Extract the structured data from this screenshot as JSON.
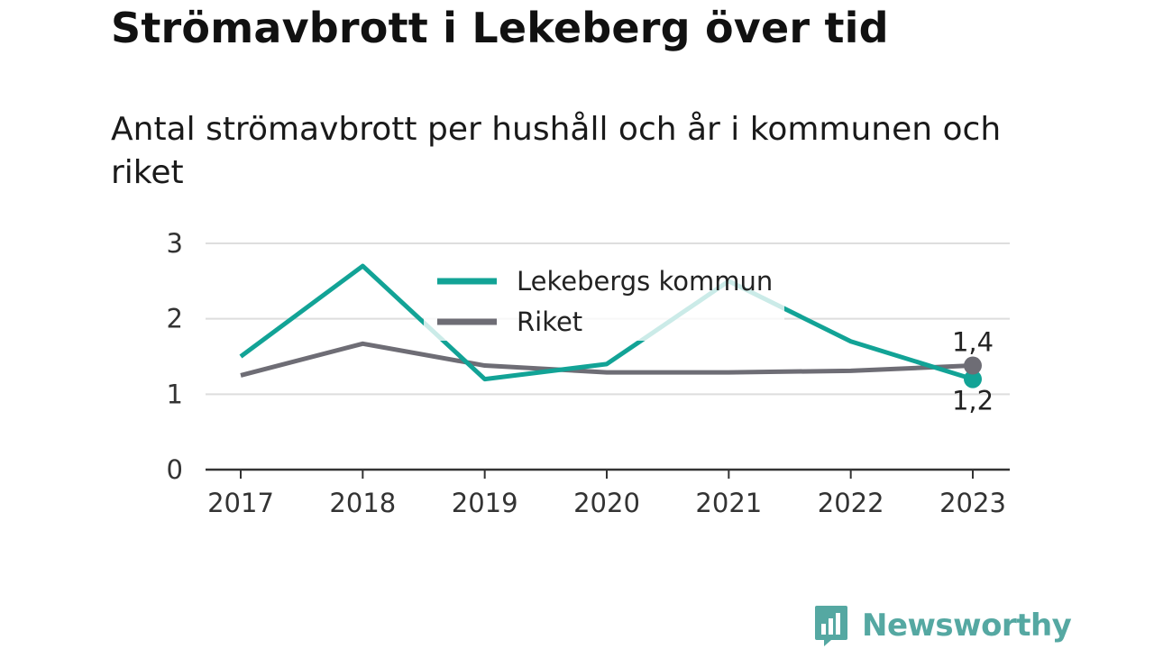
{
  "title": "Strömavbrott i Lekeberg över tid",
  "subtitle": "Antal strömavbrott per hushåll och år i kommunen och riket",
  "brand": {
    "name": "Newsworthy",
    "color": "#55a8a2",
    "icon": "newsworthy-bar-chart-icon"
  },
  "chart_data": {
    "type": "line",
    "x": [
      "2017",
      "2018",
      "2019",
      "2020",
      "2021",
      "2022",
      "2023"
    ],
    "y_ticks": [
      "0",
      "1",
      "2",
      "3"
    ],
    "ylim": [
      0,
      3
    ],
    "grid": true,
    "legend_position": "top-center",
    "series": [
      {
        "name": "Lekebergs kommun",
        "color": "#12a396",
        "values": [
          1.5,
          2.7,
          1.2,
          1.4,
          2.5,
          1.7,
          1.2
        ],
        "end_label": "1,2"
      },
      {
        "name": "Riket",
        "color": "#6e6d75",
        "values": [
          1.25,
          1.67,
          1.38,
          1.29,
          1.29,
          1.31,
          1.38
        ],
        "end_label": "1,4"
      }
    ]
  }
}
